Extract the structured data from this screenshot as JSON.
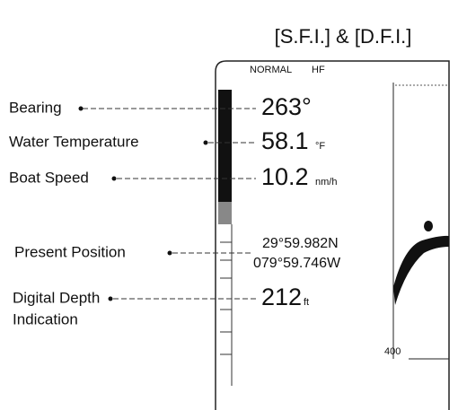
{
  "title": "[S.F.I.] & [D.F.I.]",
  "display": {
    "mode": "NORMAL",
    "frequency": "HF",
    "scale": "400"
  },
  "items": [
    {
      "label": "Bearing",
      "value": "263°"
    },
    {
      "label": "Water Temperature",
      "value": "58.1",
      "unit": "°F"
    },
    {
      "label": "Boat Speed",
      "value": "10.2",
      "unit": "nm/h"
    },
    {
      "label": "Present Position",
      "latitude": "29°59.982N",
      "longitude": "079°59.746W"
    },
    {
      "label": "Digital Depth",
      "label_line2": "Indication",
      "value": "212",
      "unit": "ft"
    }
  ]
}
